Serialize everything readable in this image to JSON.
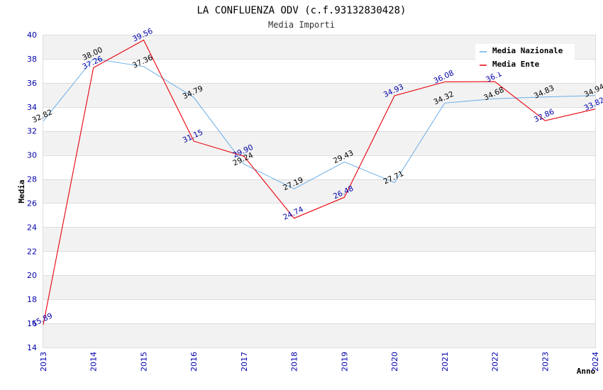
{
  "chart_data": {
    "type": "line",
    "title": "LA CONFLUENZA ODV (c.f.93132830428)",
    "subtitle": "Media Importi",
    "xlabel": "Anno",
    "ylabel": "Media",
    "ylim": [
      14,
      40
    ],
    "yticks": [
      "14",
      "16",
      "18",
      "20",
      "22",
      "24",
      "26",
      "28",
      "30",
      "32",
      "34",
      "36",
      "38",
      "40"
    ],
    "categories": [
      "2013",
      "2014",
      "2015",
      "2016",
      "2017",
      "2018",
      "2019",
      "2020",
      "2021",
      "2022",
      "2023",
      "2024"
    ],
    "series": [
      {
        "name": "Media Nazionale",
        "color": "#6aaee8",
        "label_color": "#000000",
        "values": [
          32.82,
          38.0,
          37.36,
          34.79,
          29.24,
          27.19,
          29.43,
          27.71,
          34.32,
          34.68,
          34.83,
          34.94
        ],
        "labels": [
          "32.82",
          "38.00",
          "37.36",
          "34.79",
          "29.24",
          "27.19",
          "29.43",
          "27.71",
          "34.32",
          "34.68",
          "34.83",
          "34.94"
        ]
      },
      {
        "name": "Media Ente",
        "color": "#e8000b",
        "label_color": "#0000aa",
        "values": [
          15.89,
          37.26,
          39.56,
          31.15,
          29.9,
          24.74,
          26.48,
          34.93,
          36.08,
          36.1,
          32.86,
          33.82
        ],
        "labels": [
          "15.89",
          "37.26",
          "39.56",
          "31.15",
          "29.90",
          "24.74",
          "26.48",
          "34.93",
          "36.08",
          "36.1",
          "32.86",
          "33.82"
        ]
      }
    ],
    "legend": "top-right",
    "grid": true
  }
}
